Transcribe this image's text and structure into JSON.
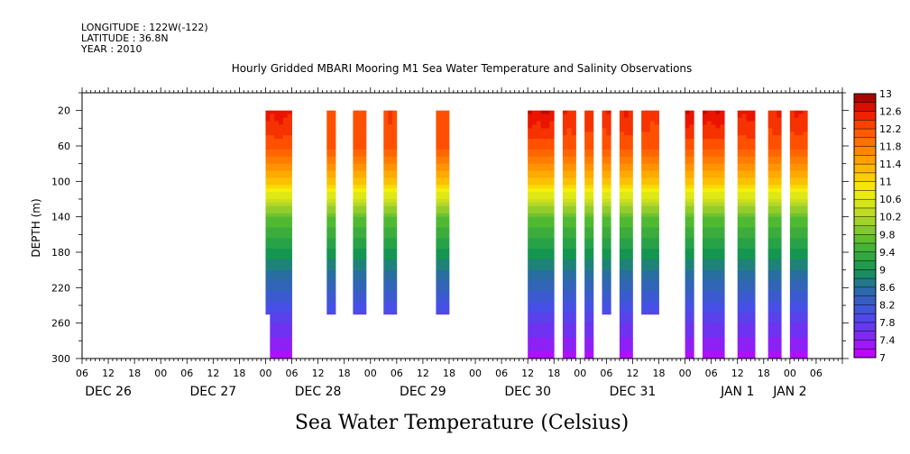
{
  "header": {
    "longitude": "LONGITUDE : 122W(-122)",
    "latitude": "LATITUDE : 36.8N",
    "year": "YEAR : 2010"
  },
  "chart_data": {
    "type": "heatmap",
    "title": "Hourly Gridded MBARI Mooring M1 Sea Water Temperature and Salinity Observations",
    "xlabel": "",
    "ylabel": "DEPTH (m)",
    "subtitle": "Sea Water Temperature (Celsius)",
    "x_range_hours": [
      0,
      172
    ],
    "x_origin_note": "",
    "ylim": [
      300,
      0
    ],
    "y_ticks": [
      20,
      60,
      100,
      140,
      180,
      220,
      260,
      300
    ],
    "x_hour_ticks": [
      "06",
      "12",
      "18",
      "00",
      "06",
      "12",
      "18",
      "00",
      "06",
      "12",
      "18",
      "00",
      "06",
      "12",
      "18",
      "00",
      "06",
      "12",
      "18",
      "00",
      "06",
      "12",
      "18",
      "00",
      "06",
      "12",
      "18",
      "00",
      "06"
    ],
    "x_day_labels": [
      "DEC 26",
      "DEC 27",
      "DEC 28",
      "DEC 29",
      "DEC 30",
      "DEC 31",
      "JAN  1",
      "JAN  2"
    ],
    "colorbar": {
      "min": 7,
      "max": 13,
      "step": 0.2,
      "labels": [
        "13",
        "12.6",
        "12.2",
        "11.8",
        "11.4",
        "11",
        "10.6",
        "10.2",
        "9.8",
        "9.4",
        "9",
        "8.6",
        "8.2",
        "7.8",
        "7.4",
        "7"
      ]
    },
    "observation_segments": [
      {
        "start": "DEC 28 00",
        "end": "DEC 28 05",
        "max_depth": 300,
        "surface_temp": 12.6
      },
      {
        "start": "DEC 28 14",
        "end": "DEC 28 15",
        "max_depth": 250,
        "surface_temp": 12.3
      },
      {
        "start": "DEC 28 20",
        "end": "DEC 28 22",
        "max_depth": 250,
        "surface_temp": 12.2
      },
      {
        "start": "DEC 29 03",
        "end": "DEC 29 05",
        "max_depth": 250,
        "surface_temp": 12.3
      },
      {
        "start": "DEC 29 15",
        "end": "DEC 29 17",
        "max_depth": 250,
        "surface_temp": 12.2
      },
      {
        "start": "DEC 30 12",
        "end": "DEC 30 17",
        "max_depth": 300,
        "surface_temp": 12.7
      },
      {
        "start": "DEC 30 20",
        "end": "DEC 30 22",
        "max_depth": 300,
        "surface_temp": 12.5
      },
      {
        "start": "DEC 31 01",
        "end": "DEC 31 02",
        "max_depth": 300,
        "surface_temp": 12.5
      },
      {
        "start": "DEC 31 05",
        "end": "DEC 31 06",
        "max_depth": 250,
        "surface_temp": 12.5
      },
      {
        "start": "DEC 31 09",
        "end": "DEC 31 11",
        "max_depth": 300,
        "surface_temp": 12.5
      },
      {
        "start": "DEC 31 14",
        "end": "DEC 31 17",
        "max_depth": 250,
        "surface_temp": 12.4
      },
      {
        "start": "JAN 1 00",
        "end": "JAN 1 01",
        "max_depth": 300,
        "surface_temp": 12.7
      },
      {
        "start": "JAN 1 04",
        "end": "JAN 1 08",
        "max_depth": 300,
        "surface_temp": 12.7
      },
      {
        "start": "JAN 1 12",
        "end": "JAN 1 15",
        "max_depth": 300,
        "surface_temp": 12.6
      },
      {
        "start": "JAN 1 19",
        "end": "JAN 1 21",
        "max_depth": 300,
        "surface_temp": 12.5
      },
      {
        "start": "JAN 2 00",
        "end": "JAN 2 03",
        "max_depth": 300,
        "surface_temp": 12.5
      }
    ]
  }
}
